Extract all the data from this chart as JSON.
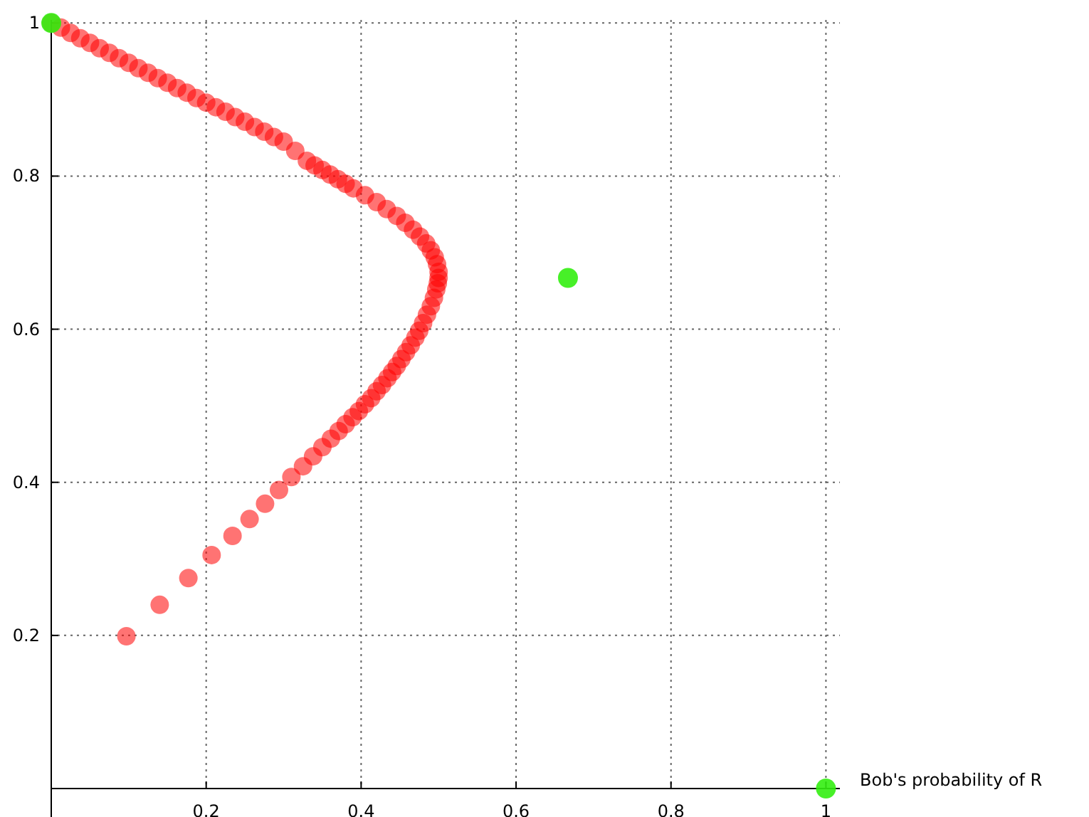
{
  "chart_data": {
    "type": "scatter",
    "xlabel": "Bob's probability of R",
    "xlim": [
      0,
      1.018
    ],
    "ylim": [
      0,
      1.004
    ],
    "xticks": [
      0.2,
      0.4,
      0.6,
      0.8,
      1
    ],
    "yticks": [
      0.2,
      0.4,
      0.6,
      0.8,
      1
    ],
    "grid": true,
    "marker": "circle",
    "series": [
      {
        "color": "#ff0000",
        "x": [
          0.097,
          0.14,
          0.177,
          0.207,
          0.234,
          0.256,
          0.276,
          0.294,
          0.31,
          0.325,
          0.338,
          0.35,
          0.361,
          0.371,
          0.38,
          0.389,
          0.397,
          0.405,
          0.413,
          0.42,
          0.427,
          0.434,
          0.44,
          0.446,
          0.452,
          0.458,
          0.464,
          0.47,
          0.475,
          0.48,
          0.485,
          0.49,
          0.494,
          0.497,
          0.499,
          0.5,
          0.5,
          0.498,
          0.495,
          0.49,
          0.484,
          0.476,
          0.467,
          0.457,
          0.446,
          0.433,
          0.42,
          0.405,
          0.39,
          0.37,
          0.35,
          0.33,
          0.3,
          0.275,
          0.25,
          0.225,
          0.2,
          0.175,
          0.15,
          0.125,
          0.1,
          0.075,
          0.05,
          0.025,
          0,
          0.0125,
          0.0375,
          0.0625,
          0.0875,
          0.1125,
          0.1375,
          0.1625,
          0.1875,
          0.2125,
          0.2375,
          0.2625,
          0.2875,
          0.315,
          0.34,
          0.36,
          0.38
        ],
        "values": [
          0.199,
          0.24,
          0.275,
          0.305,
          0.33,
          0.352,
          0.372,
          0.39,
          0.407,
          0.421,
          0.434,
          0.446,
          0.457,
          0.467,
          0.476,
          0.485,
          0.493,
          0.502,
          0.51,
          0.519,
          0.527,
          0.536,
          0.544,
          0.552,
          0.561,
          0.57,
          0.579,
          0.589,
          0.598,
          0.608,
          0.619,
          0.63,
          0.641,
          0.652,
          0.66,
          0.667,
          0.675,
          0.685,
          0.694,
          0.703,
          0.712,
          0.721,
          0.73,
          0.739,
          0.748,
          0.757,
          0.766,
          0.775,
          0.784,
          0.796,
          0.808,
          0.82,
          0.845,
          0.858,
          0.871,
          0.884,
          0.896,
          0.909,
          0.922,
          0.935,
          0.948,
          0.961,
          0.974,
          0.987,
          1,
          0.994,
          0.98,
          0.967,
          0.954,
          0.941,
          0.928,
          0.915,
          0.902,
          0.89,
          0.877,
          0.864,
          0.851,
          0.833,
          0.814,
          0.802,
          0.79
        ]
      },
      {
        "color": "#33ee11",
        "x": [
          0,
          0.667,
          1
        ],
        "values": [
          1,
          0.667,
          0
        ]
      }
    ]
  }
}
